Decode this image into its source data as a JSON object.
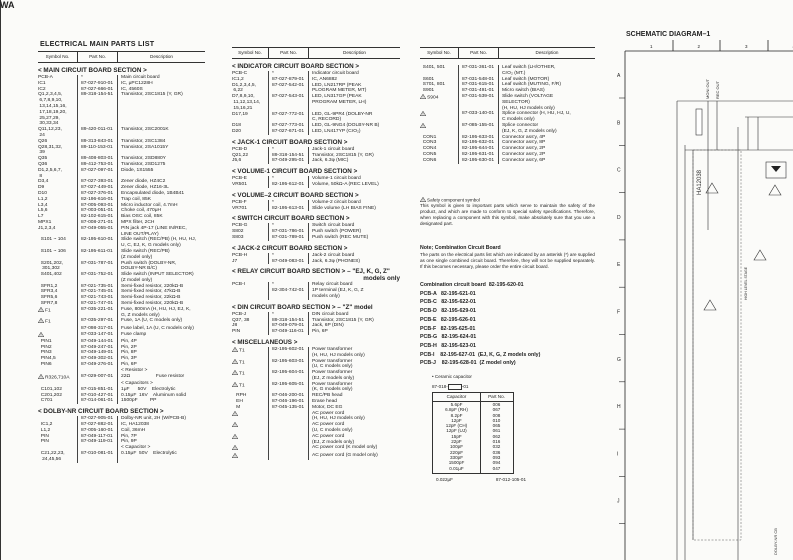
{
  "brand": "WA",
  "title": "ELECTRICAL MAIN PARTS LIST",
  "headers": {
    "symbol": "Symbol No.",
    "part": "Part No.",
    "description": "Description"
  },
  "left_sections": [
    {
      "title": "< MAIN CIRCUIT BOARD SECTION >",
      "rows": [
        {
          "s": "PCB-A",
          "p": "*",
          "d": "Main circuit board"
        },
        {
          "s": "IC1",
          "p": "87-027-910-01",
          "d": "IC, μPC1228H"
        },
        {
          "s": "IC2",
          "p": "87-027-666-01",
          "d": "IC, 4560S"
        },
        {
          "s": "Q1,2,3,4,5,\n 6,7,8,9,10,\n 13,14,15,16,\n 17,18,19,20,\n 25,27,29,\n 30,33,34",
          "p": "89-318-154-51",
          "d": "Transistor, 2SC1815 (Y, GR)"
        },
        {
          "s": "Q11,12,23,\n 24",
          "p": "89-420-011-01",
          "d": "Transistor, 2SC2001K"
        },
        {
          "s": "Q26",
          "p": "89-313-843-01",
          "d": "Transistor, 2SC1384"
        },
        {
          "s": "Q28,31,32,\n 39",
          "p": "89-110-153-01",
          "d": "Transistor, 2SA1015Y"
        },
        {
          "s": "Q35",
          "p": "89-408-803-01",
          "d": "Transistor, 2SD880Y"
        },
        {
          "s": "Q36",
          "p": "89-412-753-01",
          "d": "Transistor, 2SD1275"
        },
        {
          "s": "D1,2,5,6,7,\n 8",
          "p": "87-027-097-01",
          "d": "Diode, 1S1555"
        },
        {
          "s": "D3,4",
          "p": "87-027-393-01",
          "d": "Zener diode, HZ4C2"
        },
        {
          "s": "D9",
          "p": "87-027-449-01",
          "d": "Zener diode, HZ16-3L"
        },
        {
          "s": "D10",
          "p": "87-027-376-01",
          "d": "Encapsulated diode, 1B4B41"
        },
        {
          "s": "L1,2",
          "p": "82-196-616-01",
          "d": "Trap coil, 85K"
        },
        {
          "s": "L3,4",
          "p": "87-005-093-01",
          "d": "Micro inductor coil, 4.7mH"
        },
        {
          "s": "L5,6",
          "p": "87-003-051-01",
          "d": "Choke coil, 470μH"
        },
        {
          "s": "L7",
          "p": "82-102-615-01",
          "d": "Bias OSC coil, 85K"
        },
        {
          "s": "MPX1",
          "p": "87-008-271-01",
          "d": "MPX filter, 2CH"
        },
        {
          "s": "J1,2,3,4",
          "p": "87-049-055-01",
          "d": "PIN jack 4P-17 (LINE IN/REC,\nLINE OUT/PLAY)"
        },
        {
          "s": "  S101 ~ 104",
          "p": "82-195-610-01",
          "d": "Slide switch (REC/PB) (H, HU, HJ,\nU, C, EJ, K, G models only)"
        },
        {
          "s": "  S101 ~ 106",
          "p": "82-195-611-01",
          "d": "Slide switch (REC/PB)\n(Z model only)"
        },
        {
          "s": "  S201,202,\n   301,302",
          "p": "87-031-787-01",
          "d": "Push switch (DOLBY-NR,\nDOLBY-NR B/C)"
        },
        {
          "s": "  S401,402",
          "p": "87-031-752-01",
          "d": "Slide switch (INPUT SELECTOR)\n(Z model only)"
        },
        {
          "s": "  SFR1,2",
          "p": "87-021-735-01",
          "d": "Semi-fixed resistor, 220kΩ-B"
        },
        {
          "s": "  SFR3,4",
          "p": "87-021-745-01",
          "d": "Semi-fixed resistor, 47kΩ-B"
        },
        {
          "s": "  SFR5,6",
          "p": "87-021-743-01",
          "d": "Semi-fixed resistor, 22kΩ-B"
        },
        {
          "s": "  SFR7,8",
          "p": "87-021-747-01",
          "d": "Semi-fixed resistor, 220kΩ-B"
        },
        {
          "safety": true,
          "s": "F1",
          "p": "87-035-221-01",
          "d": "Fuse, 800mA (H, HU, HJ, EJ, K,\nG, Z models only)"
        },
        {
          "safety": true,
          "s": "F1",
          "p": "87-035-297-01",
          "d": "Fuse, 1A (U, C models only)"
        },
        {
          "s": "",
          "p": "87-098-317-01",
          "d": "Fuse label, 1A (U, C models only)"
        },
        {
          "safety": true,
          "s": "",
          "p": "87-033-147-01",
          "d": "Fuse clamp"
        },
        {
          "s": "  PIN1",
          "p": "87-049-144-01",
          "d": "Pin, 4P"
        },
        {
          "s": "  PIN2",
          "p": "87-049-247-01",
          "d": "Pin, 2P"
        },
        {
          "s": "  PIN3",
          "p": "87-049-149-01",
          "d": "Pin, 8P"
        },
        {
          "s": "  PIN4,5",
          "p": "87-049-302-01",
          "d": "Pin, 3P"
        },
        {
          "s": "  PIN6",
          "p": "87-049-276-01",
          "d": "Pin, 6P"
        },
        {
          "sub": "< Resistor >"
        },
        {
          "safety": true,
          "s": "R326,710A",
          "p": "87-029-007-01",
          "d": "22Ω                   Fuse resistor"
        },
        {
          "sub": "< Capacitors >"
        },
        {
          "s": "  C101,102",
          "p": "87-015-851-01",
          "d": "1μF      50V    Electrolytic"
        },
        {
          "s": "  C201,202",
          "p": "87-010-427-01",
          "d": "0.15μF  16V    Aluminum solid"
        },
        {
          "s": "  C701",
          "p": "87-014-061-01",
          "d": "1500pF         PP"
        }
      ]
    },
    {
      "title": "< DOLBY-NR CIRCUIT BOARD SECTION >",
      "rows": [
        {
          "s": "",
          "p": "87-027-905-01",
          "d": "Dolby-NR unit, 2H (W/PCB-B)"
        },
        {
          "s": "  IC1,2",
          "p": "87-027-882-01",
          "d": "IC, HA12038"
        },
        {
          "s": "  L1,2",
          "p": "87-005-160-01",
          "d": "Coil, 36mH"
        },
        {
          "s": "  PIN",
          "p": "87-049-117-01",
          "d": "Pin, 7P"
        },
        {
          "s": "  PIN",
          "p": "87-049-119-01",
          "d": "Pin, 9P"
        },
        {
          "sub": "< Capacitor >"
        },
        {
          "s": "  C21,22,23,\n   24,45,56",
          "p": "87-010-081-01",
          "d": "0.15μF  50V    Electrolytic"
        }
      ]
    }
  ],
  "middle_sections": [
    {
      "title": "< INDICATOR CIRCUIT BOARD SECTION >",
      "rows": [
        {
          "s": "PCB-C",
          "p": "*",
          "d": "Indicator circuit board"
        },
        {
          "s": "IC1,2",
          "p": "87-027-879-01",
          "d": "IC, AN6882"
        },
        {
          "s": "D1,2,3,4,5,\n 6,22",
          "p": "87-027-542-01",
          "d": "LED, LN217RP (PEAK\nPLOGRAM METER, MT)"
        },
        {
          "s": "D7,8,9,10,\n 11,12,13,14,\n 15,16,21",
          "p": "87-027-543-01",
          "d": "LED, LN317GP (PEAK\nPROGRAM METER, LH)"
        },
        {
          "s": "D17,19",
          "p": "87-027-772-01",
          "d": "LED, GL-9PR4 (DOLBY-NR\nC, RECORD)"
        },
        {
          "s": "D18",
          "p": "87-027-773-01",
          "d": "LED, GL-9NG4 (DOLBY-NR B)"
        },
        {
          "s": "D20",
          "p": "87-027-671-01",
          "d": "LED, LN417YP (CrO₂)"
        }
      ]
    },
    {
      "title": "< JACK-1 CIRCUIT BOARD SECTION >",
      "rows": [
        {
          "s": "PCB-D",
          "p": "*",
          "d": "Jack-1 circuit board"
        },
        {
          "s": "Q21,22",
          "p": "89-318-154-51",
          "d": "Transistor, 2SC1815 (Y, GR)"
        },
        {
          "s": "J5,6",
          "p": "87-049-295-01",
          "d": "Jack, 6.3φ (MIC)"
        }
      ]
    },
    {
      "title": "< VOLUME-1 CIRCUIT BOARD SECTION >",
      "rows": [
        {
          "s": "PCB-E",
          "p": "*",
          "d": "Volume-1 circuit board"
        },
        {
          "s": "VR501",
          "p": "82-195-612-01",
          "d": "Volume, 50kΩ-A (REC LEVEL)"
        }
      ]
    },
    {
      "title": "< VOLUME–2 CIRCUIT BOARD SECTION >",
      "rows": [
        {
          "s": "PCB-F",
          "p": "*",
          "d": "Volume-2 circuit board"
        },
        {
          "s": "VR701",
          "p": "82-195-613-01",
          "d": "Slide volume (LH BIAS FINE)"
        }
      ]
    },
    {
      "title": "< SWITCH CIRCUIT BOARD SECTION >",
      "rows": [
        {
          "s": "PCB-G",
          "p": "*",
          "d": "Switch circuit board"
        },
        {
          "s": "S802",
          "p": "87-031-786-01",
          "d": "Push switch (POWER)"
        },
        {
          "s": "S803",
          "p": "87-031-789-01",
          "d": "Push switch (REC MUTE)"
        }
      ]
    },
    {
      "title": "< JACK-2 CIRCUIT BOARD SECTION >",
      "rows": [
        {
          "s": "PCB-H",
          "p": "*",
          "d": "Jack-2 circuit board"
        },
        {
          "s": "J7",
          "p": "87-049-083-01",
          "d": "Jack, 6.3φ (PHONES)"
        }
      ]
    },
    {
      "title": "< RELAY CIRCUIT BOARD SECTION > – \"EJ, K, G, Z\"",
      "title2": "models only",
      "rows": [
        {
          "s": "PCB-I",
          "p": "*",
          "d": "Relay circuit board"
        },
        {
          "s": "",
          "p": "82-304-742-01",
          "d": "1P terminal (EJ, K, G, Z\nmodels only)"
        }
      ]
    },
    {
      "title": "< DIN CIRCUIT BOARD SECTION > – \"Z\" model",
      "rows": [
        {
          "s": "PCB-J",
          "p": "*",
          "d": "DIN circuit board"
        },
        {
          "s": "Q37, 38",
          "p": "89-318-154-51",
          "d": "Transistor, 2SC1815 (Y, GR)"
        },
        {
          "s": "J8",
          "p": "87-049-079-01",
          "d": "Jack, 6P (DIN)"
        },
        {
          "s": "PIN",
          "p": "87-049-116-01",
          "d": "Pin, 6P"
        }
      ]
    },
    {
      "title": "< MISCELLANEOUS >",
      "rows": [
        {
          "safety": true,
          "s": "T1",
          "p": "82-195-602-01",
          "d": "Power transformer\n(H, HU, HJ models only)"
        },
        {
          "safety": true,
          "s": "T1",
          "p": "82-195-603-01",
          "d": "Power transformer\n(U, C models only)"
        },
        {
          "safety": true,
          "s": "T1",
          "p": "82-195-604-01",
          "d": "Power transformer\n(EJ, Z models only)"
        },
        {
          "safety": true,
          "s": "T1",
          "p": "82-195-605-01",
          "d": "Power transformer\n(K, G models only)"
        },
        {
          "s": "   RPH",
          "p": "87-046-200-01",
          "d": "REC/PB head"
        },
        {
          "s": "   EH",
          "p": "87-046-196-01",
          "d": "Erase head"
        },
        {
          "s": "   M",
          "p": "87-045-135-01",
          "d": "Motor, DC EG"
        },
        {
          "safety": true,
          "s": "",
          "p": "",
          "d": "AC power cord\n(H, HU, HJ models only)"
        },
        {
          "safety": true,
          "s": "",
          "p": "",
          "d": "AC power cord\n(U, C models only)"
        },
        {
          "safety": true,
          "s": "",
          "p": "",
          "d": "AC power cord\n(EJ, Z models only)"
        },
        {
          "safety": true,
          "s": "",
          "p": "",
          "d": "AC power cord (K model only)"
        },
        {
          "safety": true,
          "s": "",
          "p": "",
          "d": "AC power cord (G model only)"
        }
      ]
    }
  ],
  "right_sections": [
    {
      "title": "",
      "rows": [
        {
          "s": "  S401, 501",
          "p": "87-031-361-01",
          "d": "Leaf switch (LH/OTHER,\nCrO₂ (MT.)"
        },
        {
          "s": "  S601",
          "p": "87-031-548-01",
          "d": "Leaf switch (MOTOR)"
        },
        {
          "s": "  S701, 801",
          "p": "87-031-615-01",
          "d": "Leaf switch (MUTING, F/R)"
        },
        {
          "s": "  S901",
          "p": "87-031-491-01",
          "d": "Micro switch (BIAS)"
        },
        {
          "safety": true,
          "s": "S904",
          "p": "87-031-539-01",
          "d": "Slide switch (VOLTAGE\nSELECTOR)\n(H, HU, HJ models only)"
        },
        {
          "safety": true,
          "s": "",
          "p": "87-033-140-01",
          "d": "Splice connector (H, HU, HJ, U,\nC models only)"
        },
        {
          "safety": true,
          "s": "",
          "p": "87-085-155-01",
          "d": "Splice connector\n(EJ, K, G, Z models only)"
        },
        {
          "s": "  CON1",
          "p": "82-195-633-01",
          "d": "Connector ass'y, 4P"
        },
        {
          "s": "  CON3",
          "p": "82-195-632-01",
          "d": "Connector ass'y, 8P"
        },
        {
          "s": "  CON4",
          "p": "82-195-644-01",
          "d": "Connector ass'y, 2P"
        },
        {
          "s": "  CON5",
          "p": "82-195-631-01",
          "d": "Connector ass'y, 2P"
        },
        {
          "s": "  CON6",
          "p": "82-195-630-01",
          "d": "Connector ass'y, 6P"
        }
      ]
    }
  ],
  "safety_note": {
    "heading": "Safety component symbol",
    "text": "This symbol is given to important parts which serve to maintain the safety of the product, and which are made to conform to special safety specifications. Therefore, when replacing a component with this symbol, make absolutely sure that you use a designated part."
  },
  "combination_note": {
    "heading": "Note; Combination Circuit Board",
    "text": "The parts on the electrical parts list which are indicated by an asterisk (*) are supplied as one single combined circuit board. Therefore, they will not be supplied separately. If this becomes necessary, please order the entire circuit board."
  },
  "combination_boards": [
    "Combination circuit board  82-195-620-01",
    "PCB-A   82-195-621-01",
    "PCB-C   82-195-622-01",
    "PCB-D   82-195-629-01",
    "PCB-E   82-195-626-01",
    "PCB-F   82-195-625-01",
    "PCB-G   82-195-624-01",
    "PCB-H   82-195-623-01",
    "PCB-I    82-195-627-01  (EJ, K, G, Z models only)",
    "PCB-J    82-195-628-01  (Z model only)"
  ],
  "ceramic": {
    "heading": "• Ceramic capacitor",
    "part_prefix": "87-018-",
    "part_suffix": "-01",
    "headers": [
      "Capacitor",
      "Part No."
    ],
    "rows": [
      [
        "5.6pF",
        "006"
      ],
      [
        "6.8pF (RH)",
        "067"
      ],
      [
        "8.2pF",
        "008"
      ],
      [
        "12pF",
        "010"
      ],
      [
        "12pF (CH)",
        "065"
      ],
      [
        "12pF (UJ)",
        "061"
      ],
      [
        "15pF",
        "062"
      ],
      [
        "22pF",
        "016"
      ],
      [
        "100pF",
        "032"
      ],
      [
        "220pF",
        "036"
      ],
      [
        "330pF",
        "093"
      ],
      [
        "1500pF",
        "094"
      ],
      [
        "0.01μF",
        "047"
      ]
    ],
    "extra": [
      "0.022μF",
      "87-012-105-01"
    ]
  },
  "schematic": {
    "title": "SCHEMATIC DIAGRAM–1",
    "columns": [
      "1",
      "2",
      "3",
      "4"
    ],
    "rows": [
      "A",
      "B",
      "C",
      "D",
      "E",
      "F",
      "G",
      "H",
      "I",
      "J"
    ],
    "labels": [
      "MONI OUT",
      "REC OUT",
      "HA12038",
      "HIGH LEVEL STAGE",
      "DOLBY-NR CB"
    ]
  }
}
